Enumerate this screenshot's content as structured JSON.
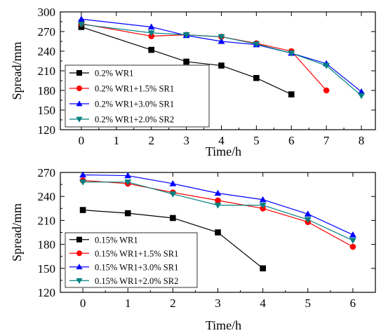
{
  "chart_data": [
    {
      "type": "line",
      "xlabel": "Time/h",
      "ylabel": "Spread/mm",
      "xlim": [
        -0.6,
        8.4
      ],
      "ylim": [
        120,
        300
      ],
      "xticks": [
        0,
        1,
        2,
        3,
        4,
        5,
        6,
        7,
        8
      ],
      "yticks": [
        120,
        150,
        180,
        210,
        240,
        270,
        300
      ],
      "grid": false,
      "legend_position": "bottom-left",
      "series": [
        {
          "name": "0.2% WR1",
          "color": "#000000",
          "marker": "square",
          "x": [
            0,
            2,
            3,
            4,
            5,
            6
          ],
          "y": [
            277,
            242,
            224,
            218,
            199,
            174
          ]
        },
        {
          "name": "0.2% WR1+1.5% SR1",
          "color": "#ff0000",
          "marker": "circle",
          "x": [
            0,
            2,
            3,
            4,
            5,
            6,
            7
          ],
          "y": [
            282,
            263,
            265,
            262,
            252,
            240,
            180
          ]
        },
        {
          "name": "0.2% WR1+3.0% SR1",
          "color": "#0000ff",
          "marker": "triangle-up",
          "x": [
            0,
            2,
            3,
            4,
            5,
            6,
            7,
            8
          ],
          "y": [
            289,
            277,
            264,
            255,
            250,
            237,
            221,
            178
          ]
        },
        {
          "name": "0.2% WR1+2.0% SR2",
          "color": "#008080",
          "marker": "triangle-down",
          "x": [
            0,
            2,
            3,
            4,
            5,
            6,
            7,
            8
          ],
          "y": [
            281,
            268,
            265,
            262,
            251,
            237,
            218,
            172
          ]
        }
      ]
    },
    {
      "type": "line",
      "xlabel": "Time/h",
      "ylabel": "Spread/mm",
      "xlim": [
        -0.5,
        6.5
      ],
      "ylim": [
        120,
        270
      ],
      "xticks": [
        0,
        1,
        2,
        3,
        4,
        5,
        6
      ],
      "yticks": [
        120,
        150,
        180,
        210,
        240,
        270
      ],
      "grid": false,
      "legend_position": "bottom-left",
      "series": [
        {
          "name": "0.15% WR1",
          "color": "#000000",
          "marker": "square",
          "x": [
            0,
            1,
            2,
            3,
            4
          ],
          "y": [
            223,
            219,
            213,
            195,
            150
          ]
        },
        {
          "name": "0.15% WR1+1.5% SR1",
          "color": "#ff0000",
          "marker": "circle",
          "x": [
            0,
            1,
            2,
            3,
            4,
            5,
            6
          ],
          "y": [
            260,
            256,
            245,
            235,
            225,
            208,
            177
          ]
        },
        {
          "name": "0.15% WR1+3.0% SR1",
          "color": "#0000ff",
          "marker": "triangle-up",
          "x": [
            0,
            1,
            2,
            3,
            4,
            5,
            6
          ],
          "y": [
            267,
            266,
            256,
            244,
            236,
            218,
            192
          ]
        },
        {
          "name": "0.15% WR1+2.0% SR2",
          "color": "#008080",
          "marker": "triangle-down",
          "x": [
            0,
            1,
            2,
            3,
            4,
            5,
            6
          ],
          "y": [
            258,
            258,
            243,
            229,
            229,
            211,
            185
          ]
        }
      ]
    }
  ]
}
